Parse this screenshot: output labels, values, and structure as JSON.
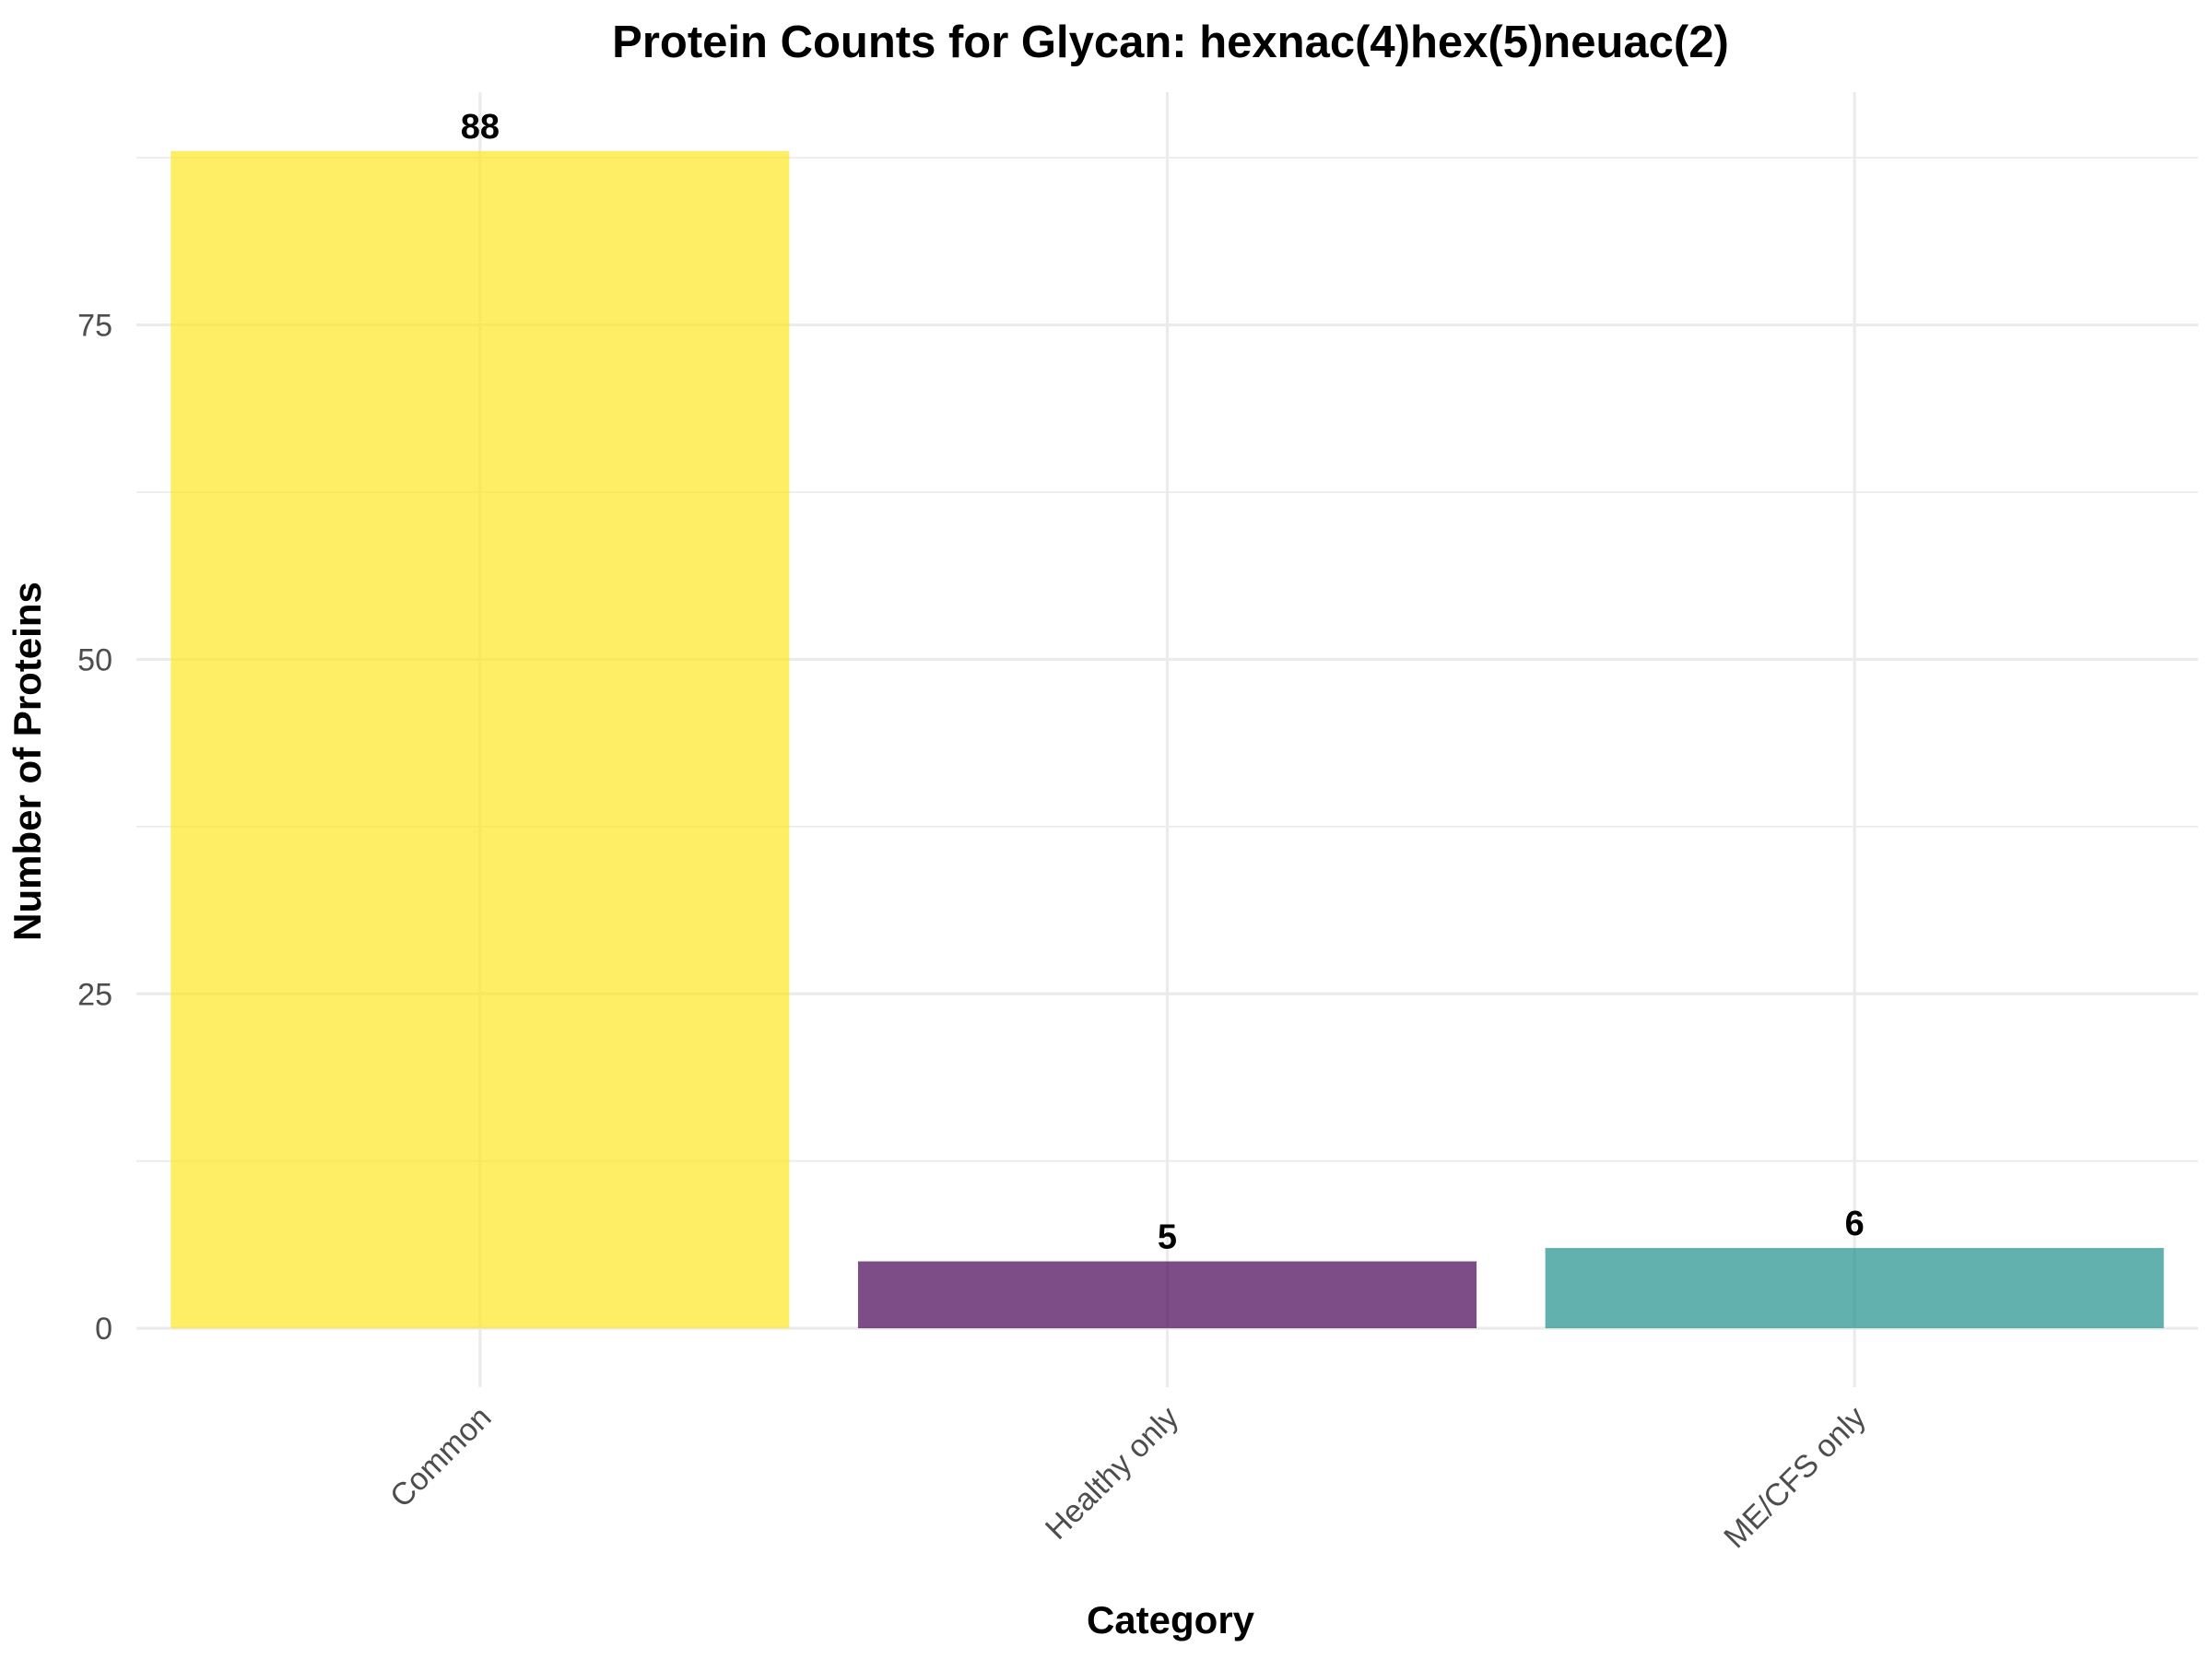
{
  "chart_data": {
    "type": "bar",
    "title": "Protein Counts for Glycan: hexnac(4)hex(5)neuac(2)",
    "xlabel": "Category",
    "ylabel": "Number of Proteins",
    "categories": [
      "Common",
      "Healthy only",
      "ME/CFS only"
    ],
    "values": [
      88,
      5,
      6
    ],
    "data_labels": [
      "88",
      "5",
      "6"
    ],
    "colors": [
      "#FDE725",
      "#440154",
      "#21908C"
    ],
    "bar_opacity": 0.7,
    "ylim": [
      -4.4,
      92.4
    ],
    "yticks": [
      0,
      25,
      50,
      75
    ],
    "ytick_labels": [
      "0",
      "25",
      "50",
      "75"
    ],
    "grid": true,
    "legend": "none"
  }
}
